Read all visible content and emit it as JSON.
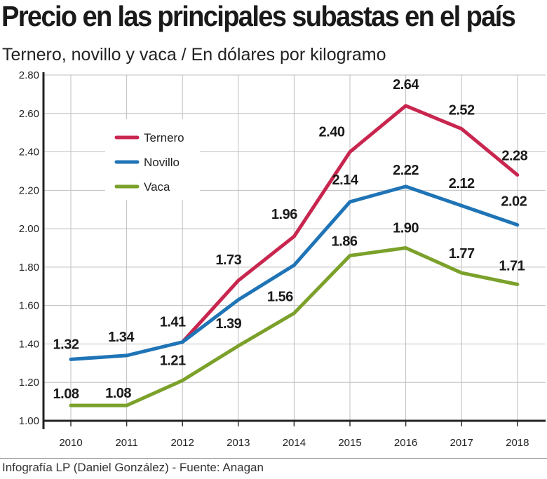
{
  "header": {
    "title": "Precio en las principales subastas en el país",
    "subtitle": "Ternero, novillo y vaca / En dólares por kilogramo"
  },
  "footer": {
    "source": "Infografía LP (Daniel González) - Fuente: Anagan"
  },
  "chart_data": {
    "type": "line",
    "x": [
      "2010",
      "2011",
      "2012",
      "2013",
      "2014",
      "2015",
      "2016",
      "2017",
      "2018"
    ],
    "ylim": [
      1.0,
      2.8
    ],
    "yticks": [
      "1.00",
      "1.20",
      "1.40",
      "1.60",
      "1.80",
      "2.00",
      "2.20",
      "2.40",
      "2.60",
      "2.80"
    ],
    "grid": true,
    "legend_position": "top-left",
    "series": [
      {
        "name": "Ternero",
        "color": "#c8264f",
        "values": [
          null,
          null,
          1.41,
          1.73,
          1.96,
          2.4,
          2.64,
          2.52,
          2.28
        ],
        "labels": [
          "",
          "",
          "",
          "1.73",
          "1.96",
          "2.40",
          "2.64",
          "2.52",
          "2.28"
        ]
      },
      {
        "name": "Novillo",
        "color": "#1f74b6",
        "values": [
          1.32,
          1.34,
          1.41,
          1.63,
          1.81,
          2.14,
          2.22,
          2.12,
          2.02
        ],
        "labels": [
          "1.32",
          "1.34",
          "1.41",
          "",
          "",
          "2.14",
          "2.22",
          "2.12",
          "2.02"
        ]
      },
      {
        "name": "Vaca",
        "color": "#7ba12b",
        "values": [
          1.08,
          1.08,
          1.21,
          1.39,
          1.56,
          1.86,
          1.9,
          1.77,
          1.71
        ],
        "labels": [
          "1.08",
          "1.08",
          "1.21",
          "1.39",
          "1.56",
          "1.86",
          "1.90",
          "1.77",
          "1.71"
        ]
      }
    ]
  }
}
